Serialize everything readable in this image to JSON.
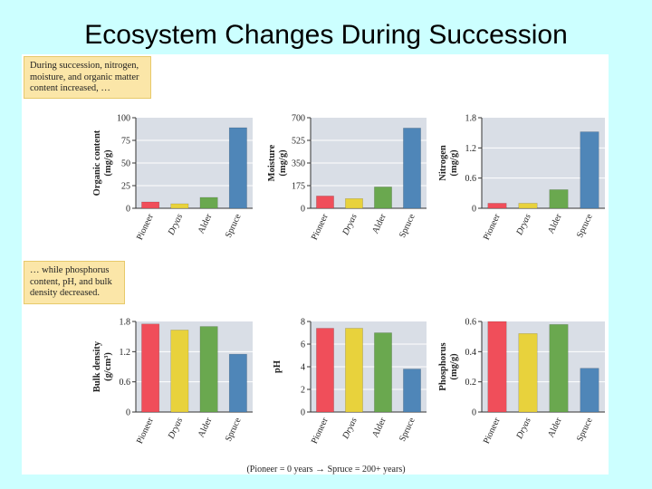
{
  "slide": {
    "title": "Ecosystem Changes During Succession",
    "note_top": [
      "During succession, nitrogen,",
      "moisture, and organic matter",
      "content increased, …"
    ],
    "note_bottom": [
      "… while phosphorus",
      "content, pH, and bulk",
      "density decreased."
    ],
    "footer_left": "(Pioneer = 0 years",
    "footer_arrow": "→",
    "footer_right": "Spruce = 200+ years)"
  },
  "colors": {
    "pioneer": "#f04e5a",
    "dryas": "#e8d23c",
    "alder": "#6aa84f",
    "spruce": "#4f86b8",
    "plot_bg": "#d9dee6"
  },
  "chart_data": [
    {
      "type": "bar",
      "ylabel": "Organic content",
      "ylabel_unit": "(mg/g)",
      "categories": [
        "Pioneer",
        "Dryas",
        "Alder",
        "Spruce"
      ],
      "values": [
        7,
        5,
        12,
        89
      ],
      "ylim": [
        0,
        100
      ],
      "yticks": [
        0,
        25,
        50,
        75,
        100
      ],
      "ytick_labels": [
        "0",
        "25",
        "50",
        "75",
        "100"
      ]
    },
    {
      "type": "bar",
      "ylabel": "Moisture",
      "ylabel_unit": "(mg/g)",
      "categories": [
        "Pioneer",
        "Dryas",
        "Alder",
        "Spruce"
      ],
      "values": [
        95,
        75,
        165,
        620
      ],
      "ylim": [
        0,
        700
      ],
      "yticks": [
        0,
        175,
        350,
        525,
        700
      ],
      "ytick_labels": [
        "0",
        "175",
        "350",
        "525",
        "700"
      ]
    },
    {
      "type": "bar",
      "ylabel": "Nitrogen",
      "ylabel_unit": "(mg/g)",
      "categories": [
        "Pioneer",
        "Dryas",
        "Alder",
        "Spruce"
      ],
      "values": [
        0.1,
        0.1,
        0.37,
        1.52
      ],
      "ylim": [
        0,
        1.8
      ],
      "yticks": [
        0,
        0.6,
        1.2,
        1.8
      ],
      "ytick_labels": [
        "0",
        "0.6",
        "1.2",
        "1.8"
      ]
    },
    {
      "type": "bar",
      "ylabel": "Bulk density",
      "ylabel_unit": "(g/cm³)",
      "categories": [
        "Pioneer",
        "Dryas",
        "Alder",
        "Spruce"
      ],
      "values": [
        1.75,
        1.63,
        1.7,
        1.15
      ],
      "ylim": [
        0,
        1.8
      ],
      "yticks": [
        0,
        0.6,
        1.2,
        1.8
      ],
      "ytick_labels": [
        "0",
        "0.6",
        "1.2",
        "1.8"
      ]
    },
    {
      "type": "bar",
      "ylabel": "pH",
      "ylabel_unit": "",
      "categories": [
        "Pioneer",
        "Dryas",
        "Alder",
        "Spruce"
      ],
      "values": [
        7.4,
        7.4,
        7.0,
        3.8
      ],
      "ylim": [
        0,
        8
      ],
      "yticks": [
        0,
        2,
        4,
        6,
        8
      ],
      "ytick_labels": [
        "0",
        "2",
        "4",
        "6",
        "8"
      ]
    },
    {
      "type": "bar",
      "ylabel": "Phosphorus",
      "ylabel_unit": "(mg/g)",
      "categories": [
        "Pioneer",
        "Dryas",
        "Alder",
        "Spruce"
      ],
      "values": [
        0.6,
        0.52,
        0.58,
        0.29
      ],
      "ylim": [
        0,
        0.6
      ],
      "yticks": [
        0,
        0.2,
        0.4,
        0.6
      ],
      "ytick_labels": [
        "0",
        "0.2",
        "0.4",
        "0.6"
      ]
    }
  ]
}
